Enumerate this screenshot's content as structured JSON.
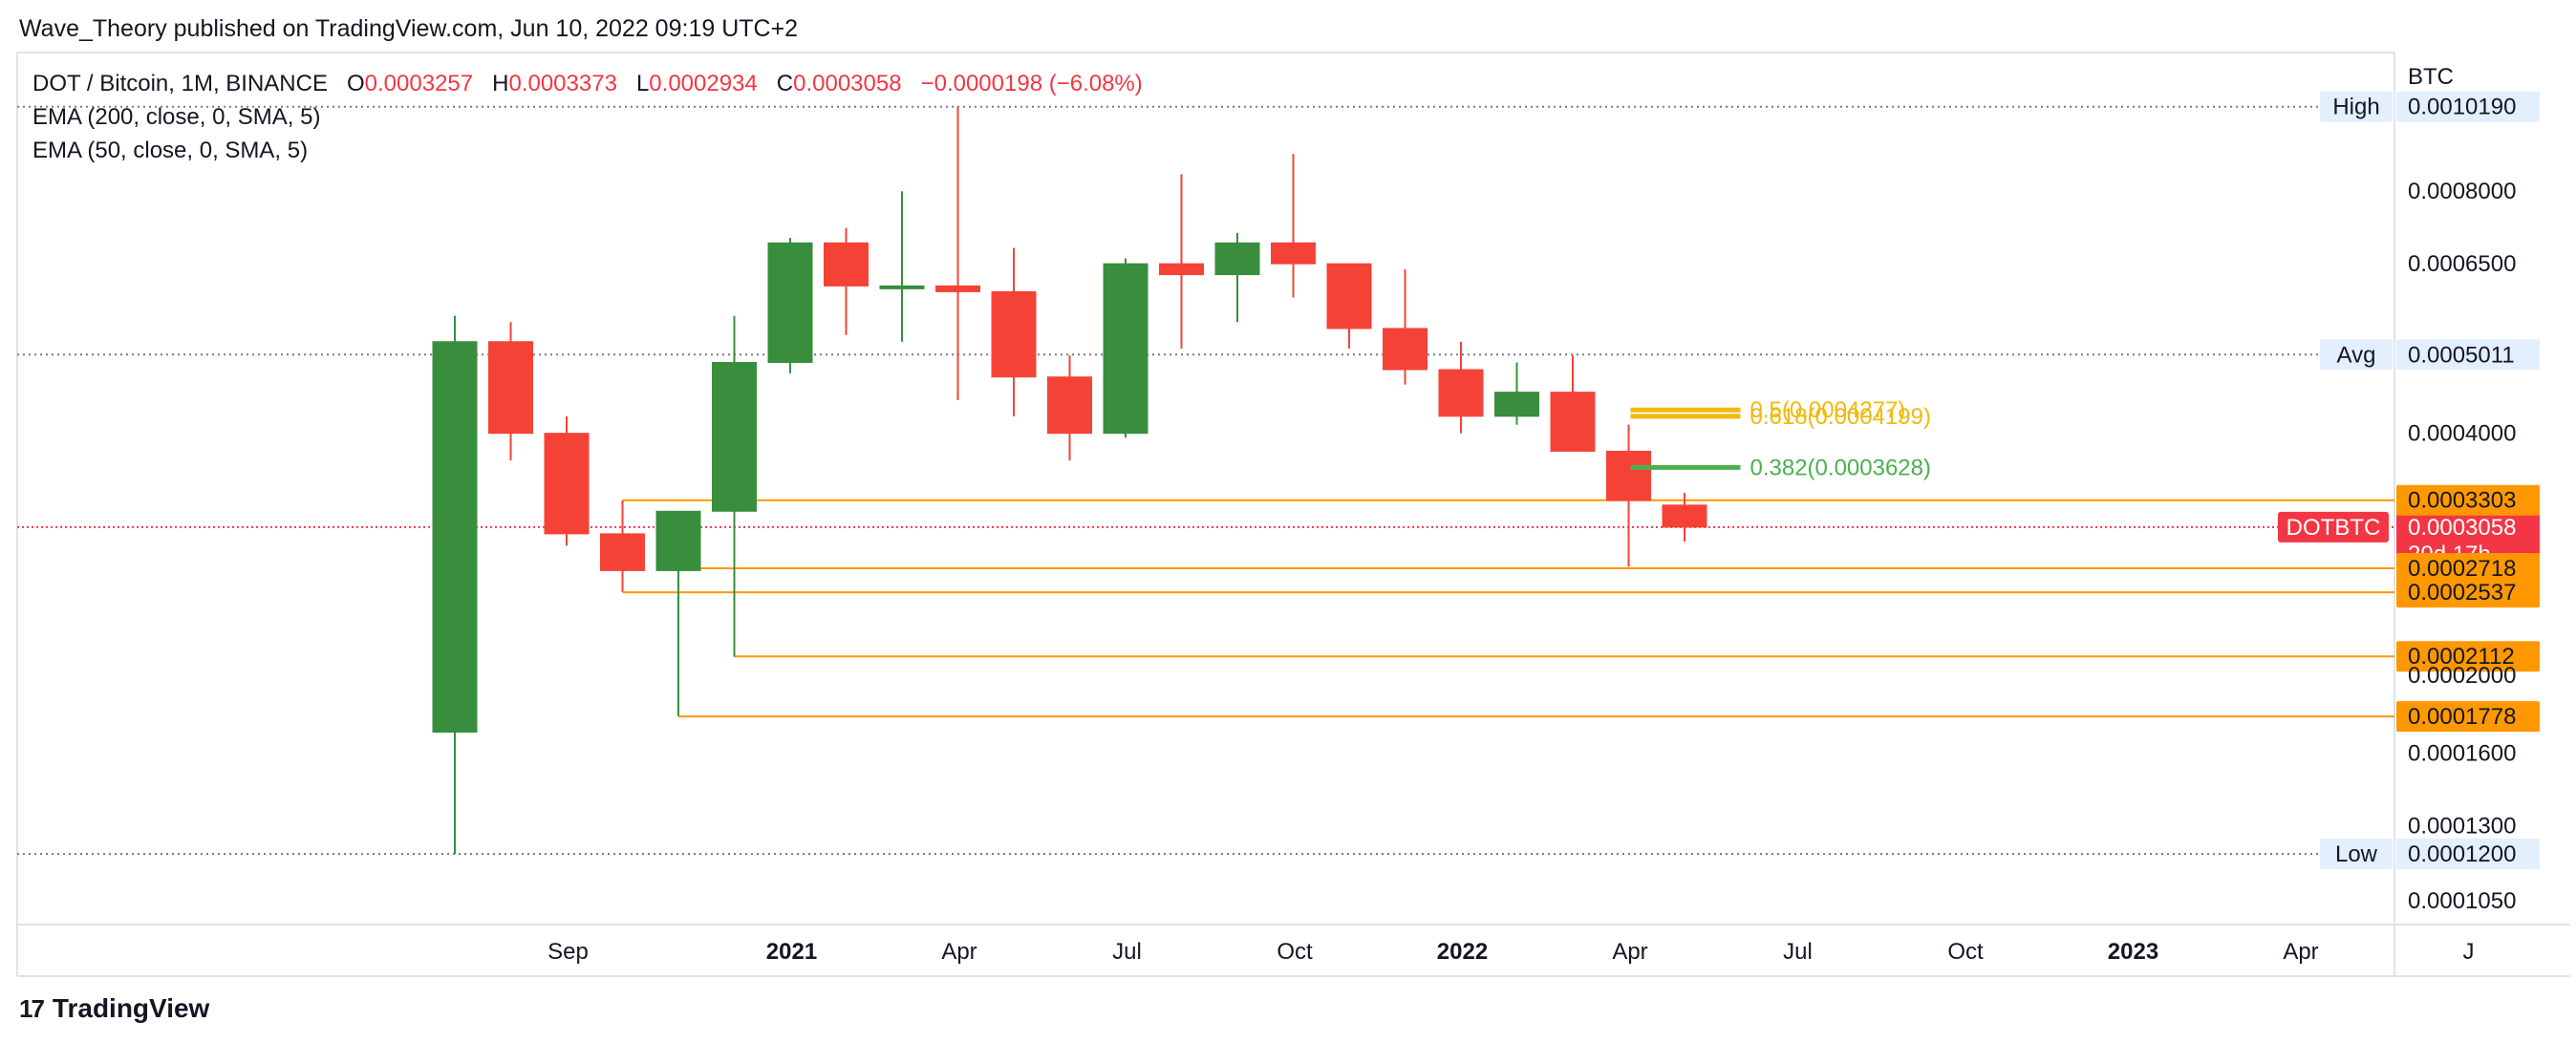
{
  "header": {
    "caption": "Wave_Theory published on TradingView.com, Jun 10, 2022 09:19 UTC+2"
  },
  "legend": {
    "symbol": "DOT / Bitcoin, 1M, BINANCE",
    "o_label": "O",
    "o_value": "0.0003257",
    "h_label": "H",
    "h_value": "0.0003373",
    "l_label": "L",
    "l_value": "0.0002934",
    "c_label": "C",
    "c_value": "0.0003058",
    "change": "−0.0000198 (−6.08%)",
    "ema200": "EMA (200, close, 0, SMA, 5)",
    "ema50": "EMA (50, close, 0, SMA, 5)"
  },
  "footer": {
    "brand": "TradingView",
    "logo_icon": "tradingview-logo-icon"
  },
  "chart_data": {
    "type": "candlestick",
    "scale": "log",
    "currency": "BTC",
    "ylim": [
      9.8e-05,
      0.00119
    ],
    "y_ticks": [
      "0.0008000",
      "0.0006500",
      "0.0004000",
      "0.0002000",
      "0.0001600",
      "0.0001300",
      "0.0001050"
    ],
    "x_ticks": [
      {
        "label": "Sep",
        "bold": false,
        "month": "2020-09"
      },
      {
        "label": "2021",
        "bold": true,
        "month": "2021-01"
      },
      {
        "label": "Apr",
        "bold": false,
        "month": "2021-04"
      },
      {
        "label": "Jul",
        "bold": false,
        "month": "2021-07"
      },
      {
        "label": "Oct",
        "bold": false,
        "month": "2021-10"
      },
      {
        "label": "2022",
        "bold": true,
        "month": "2022-01"
      },
      {
        "label": "Apr",
        "bold": false,
        "month": "2022-04"
      },
      {
        "label": "Jul",
        "bold": false,
        "month": "2022-07"
      },
      {
        "label": "Oct",
        "bold": false,
        "month": "2022-10"
      },
      {
        "label": "2023",
        "bold": true,
        "month": "2023-01"
      },
      {
        "label": "Apr",
        "bold": false,
        "month": "2023-04"
      },
      {
        "label": "J",
        "bold": false,
        "month": "2023-07"
      }
    ],
    "candles": [
      {
        "month": "2020-08",
        "open": 0.00017,
        "high": 0.00056,
        "low": 0.00012,
        "close": 0.00052
      },
      {
        "month": "2020-09",
        "open": 0.00052,
        "high": 0.00055,
        "low": 0.00037,
        "close": 0.0004
      },
      {
        "month": "2020-10",
        "open": 0.0004,
        "high": 0.00042,
        "low": 0.00029,
        "close": 0.0003
      },
      {
        "month": "2020-11",
        "open": 0.0003,
        "high": 0.00033,
        "low": 0.000254,
        "close": 0.00027
      },
      {
        "month": "2020-12",
        "open": 0.00027,
        "high": 0.00032,
        "low": 0.000178,
        "close": 0.00032
      },
      {
        "month": "2021-01",
        "open": 0.00032,
        "high": 0.00056,
        "low": 0.000211,
        "close": 0.00049
      },
      {
        "month": "2021-02",
        "open": 0.00049,
        "high": 0.0007,
        "low": 0.000475,
        "close": 0.00069
      },
      {
        "month": "2021-03",
        "open": 0.00069,
        "high": 0.00072,
        "low": 0.00053,
        "close": 0.00061
      },
      {
        "month": "2021-04",
        "open": 0.00061,
        "high": 0.0008,
        "low": 0.00052,
        "close": 0.00061
      },
      {
        "month": "2021-05",
        "open": 0.00061,
        "high": 0.001019,
        "low": 0.00044,
        "close": 0.0006
      },
      {
        "month": "2021-06",
        "open": 0.0006,
        "high": 0.00068,
        "low": 0.00042,
        "close": 0.00047
      },
      {
        "month": "2021-07",
        "open": 0.00047,
        "high": 0.0005,
        "low": 0.00037,
        "close": 0.0004
      },
      {
        "month": "2021-08",
        "open": 0.0004,
        "high": 0.00066,
        "low": 0.000395,
        "close": 0.00065
      },
      {
        "month": "2021-09",
        "open": 0.00065,
        "high": 0.00084,
        "low": 0.00051,
        "close": 0.00063
      },
      {
        "month": "2021-10",
        "open": 0.00063,
        "high": 0.00071,
        "low": 0.00055,
        "close": 0.00069
      },
      {
        "month": "2021-11",
        "open": 0.00069,
        "high": 0.00089,
        "low": 0.00059,
        "close": 0.00065
      },
      {
        "month": "2021-12",
        "open": 0.00065,
        "high": 0.00065,
        "low": 0.00051,
        "close": 0.00054
      },
      {
        "month": "2022-01",
        "open": 0.00054,
        "high": 0.00064,
        "low": 0.00046,
        "close": 0.00048
      },
      {
        "month": "2022-02",
        "open": 0.00048,
        "high": 0.00052,
        "low": 0.0004,
        "close": 0.00042
      },
      {
        "month": "2022-03",
        "open": 0.00042,
        "high": 0.00049,
        "low": 0.00041,
        "close": 0.00045
      },
      {
        "month": "2022-04",
        "open": 0.00045,
        "high": 0.0005,
        "low": 0.00038,
        "close": 0.00038
      },
      {
        "month": "2022-05",
        "open": 0.00038,
        "high": 0.00041,
        "low": 0.000273,
        "close": 0.00033
      },
      {
        "month": "2022-06",
        "open": 0.0003257,
        "high": 0.0003373,
        "low": 0.0002934,
        "close": 0.0003058
      }
    ],
    "reference_lines": [
      {
        "label": "High",
        "value": "0.0010190",
        "style": "dotted"
      },
      {
        "label": "Avg",
        "value": "0.0005011",
        "style": "dotted"
      },
      {
        "label": "Low",
        "value": "0.0001200",
        "style": "dotted"
      }
    ],
    "price_line": {
      "label": "DOTBTC",
      "value": "0.0003058",
      "countdown": "20d 17h",
      "color": "#f23645"
    },
    "support_levels": [
      {
        "value": "0.0003303",
        "from_month": "2020-11"
      },
      {
        "value": "0.0002718",
        "from_month": "2020-12"
      },
      {
        "value": "0.0002537",
        "from_month": "2020-11"
      },
      {
        "value": "0.0002112",
        "from_month": "2021-01"
      },
      {
        "value": "0.0001778",
        "from_month": "2020-12"
      }
    ],
    "fib_levels": [
      {
        "text": "0.5(0.0004277)",
        "value": 0.0004277,
        "color": "#f2b90d"
      },
      {
        "text": "0.618(0.0004199)",
        "value": 0.0004199,
        "color": "#f2b90d"
      },
      {
        "text": "0.382(0.0003628)",
        "value": 0.0003628,
        "color": "#4caf50"
      }
    ],
    "colors": {
      "up": "#388e3c",
      "down": "#f44336",
      "support": "#ff9800",
      "grid_dots": "#787b86"
    }
  }
}
